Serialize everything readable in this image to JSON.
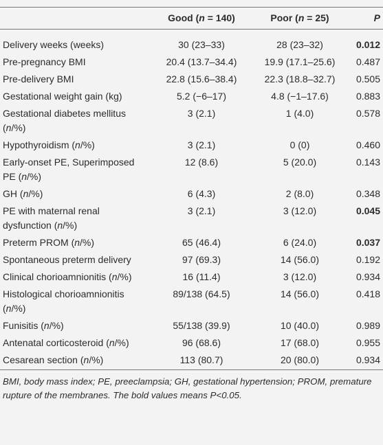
{
  "table": {
    "header": {
      "good": "Good (n = 140)",
      "poor": "Poor (n = 25)",
      "p": "P"
    },
    "rows": [
      {
        "label": "Delivery weeks (weeks)",
        "good": "30 (23–33)",
        "poor": "28 (23–32)",
        "p": "0.012",
        "bold": true
      },
      {
        "label": "Pre-pregnancy BMI",
        "good": "20.4 (13.7–34.4)",
        "poor": "19.9 (17.1–25.6)",
        "p": "0.487",
        "bold": false
      },
      {
        "label": "Pre-delivery BMI",
        "good": "22.8 (15.6–38.4)",
        "poor": "22.3 (18.8–32.7)",
        "p": "0.505",
        "bold": false
      },
      {
        "label": "Gestational weight gain (kg)",
        "good": "5.2 (−6–17)",
        "poor": "4.8 (−1–17.6)",
        "p": "0.883",
        "bold": false
      },
      {
        "label": "Gestational diabetes mellitus (n/%)",
        "good": "3 (2.1)",
        "poor": "1 (4.0)",
        "p": "0.578",
        "bold": false
      },
      {
        "label": "Hypothyroidism (n/%)",
        "good": "3 (2.1)",
        "poor": "0 (0)",
        "p": "0.460",
        "bold": false
      },
      {
        "label": "Early-onset PE, Superimposed PE (n/%)",
        "good": "12 (8.6)",
        "poor": "5 (20.0)",
        "p": "0.143",
        "bold": false
      },
      {
        "label": "GH (n/%)",
        "good": "6 (4.3)",
        "poor": "2 (8.0)",
        "p": "0.348",
        "bold": false
      },
      {
        "label": "PE with maternal renal dysfunction (n/%)",
        "good": "3 (2.1)",
        "poor": "3 (12.0)",
        "p": "0.045",
        "bold": true
      },
      {
        "label": "Preterm PROM (n/%)",
        "good": "65 (46.4)",
        "poor": "6 (24.0)",
        "p": "0.037",
        "bold": true
      },
      {
        "label": "Spontaneous preterm delivery",
        "good": "97 (69.3)",
        "poor": "14 (56.0)",
        "p": "0.192",
        "bold": false
      },
      {
        "label": "Clinical chorioamnionitis (n/%)",
        "good": "16 (11.4)",
        "poor": "3 (12.0)",
        "p": "0.934",
        "bold": false
      },
      {
        "label": "Histological chorioamnionitis (n/%)",
        "good": "89/138 (64.5)",
        "poor": "14 (56.0)",
        "p": "0.418",
        "bold": false
      },
      {
        "label": "Funisitis (n/%)",
        "good": "55/138 (39.9)",
        "poor": "10 (40.0)",
        "p": "0.989",
        "bold": false
      },
      {
        "label": "Antenatal corticosteroid (n/%)",
        "good": "96 (68.6)",
        "poor": "17 (68.0)",
        "p": "0.955",
        "bold": false
      },
      {
        "label": "Cesarean section (n/%)",
        "good": "113 (80.7)",
        "poor": "20 (80.0)",
        "p": "0.934",
        "bold": false
      }
    ]
  },
  "footnote": "BMI, body mass index; PE, preeclampsia; GH, gestational hypertension; PROM, premature rupture of the membranes. The bold values means P<0.05."
}
